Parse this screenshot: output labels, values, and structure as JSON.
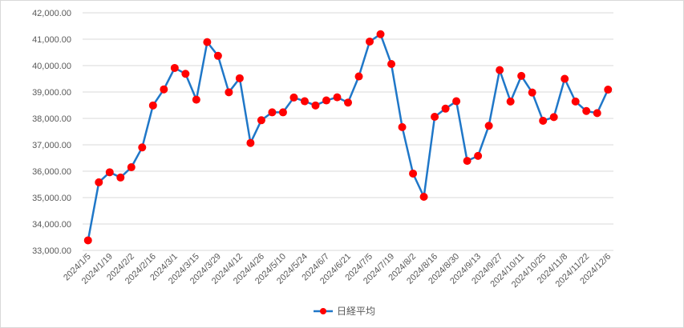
{
  "chart_data": {
    "type": "line",
    "title": "",
    "xlabel": "",
    "ylabel": "",
    "ylim": [
      33000,
      42000
    ],
    "y_ticks": [
      "33,000.00",
      "34,000.00",
      "35,000.00",
      "36,000.00",
      "37,000.00",
      "38,000.00",
      "39,000.00",
      "40,000.00",
      "41,000.00",
      "42,000.00"
    ],
    "y_tick_values": [
      33000,
      34000,
      35000,
      36000,
      37000,
      38000,
      39000,
      40000,
      41000,
      42000
    ],
    "x": [
      "2024/1/5",
      "2024/1/12",
      "2024/1/19",
      "2024/1/26",
      "2024/2/2",
      "2024/2/9",
      "2024/2/16",
      "2024/2/23",
      "2024/3/1",
      "2024/3/8",
      "2024/3/15",
      "2024/3/22",
      "2024/3/29",
      "2024/4/5",
      "2024/4/12",
      "2024/4/19",
      "2024/4/26",
      "2024/5/3",
      "2024/5/10",
      "2024/5/17",
      "2024/5/24",
      "2024/5/31",
      "2024/6/7",
      "2024/6/14",
      "2024/6/21",
      "2024/6/28",
      "2024/7/5",
      "2024/7/12",
      "2024/7/19",
      "2024/7/26",
      "2024/8/2",
      "2024/8/9",
      "2024/8/16",
      "2024/8/23",
      "2024/8/30",
      "2024/9/6",
      "2024/9/13",
      "2024/9/20",
      "2024/9/27",
      "2024/10/4",
      "2024/10/11",
      "2024/10/18",
      "2024/10/25",
      "2024/11/1",
      "2024/11/8",
      "2024/11/15",
      "2024/11/22",
      "2024/11/29",
      "2024/12/6"
    ],
    "x_tick_labels": [
      "2024/1/5",
      "2024/1/19",
      "2024/2/2",
      "2024/2/16",
      "2024/3/1",
      "2024/3/15",
      "2024/3/29",
      "2024/4/12",
      "2024/4/26",
      "2024/5/10",
      "2024/5/24",
      "2024/6/7",
      "2024/6/21",
      "2024/7/5",
      "2024/7/19",
      "2024/8/2",
      "2024/8/16",
      "2024/8/30",
      "2024/9/13",
      "2024/9/27",
      "2024/10/11",
      "2024/10/25",
      "2024/11/8",
      "2024/11/22",
      "2024/12/6"
    ],
    "grid": true,
    "legend_position": "bottom",
    "series": [
      {
        "name": "日経平均",
        "line_color": "#1f77c8",
        "marker_color": "#ff0000",
        "values": [
          33380,
          35580,
          35960,
          35760,
          36150,
          36900,
          38490,
          39100,
          39910,
          39690,
          38710,
          40890,
          40370,
          38990,
          39520,
          37070,
          37930,
          38230,
          38230,
          38790,
          38650,
          38490,
          38680,
          38800,
          38600,
          39590,
          40910,
          41190,
          40060,
          37670,
          35910,
          35030,
          38060,
          38370,
          38650,
          36390,
          36580,
          37720,
          39830,
          38640,
          39610,
          38980,
          37910,
          38050,
          39500,
          38640,
          38280,
          38200,
          39090
        ]
      }
    ]
  }
}
